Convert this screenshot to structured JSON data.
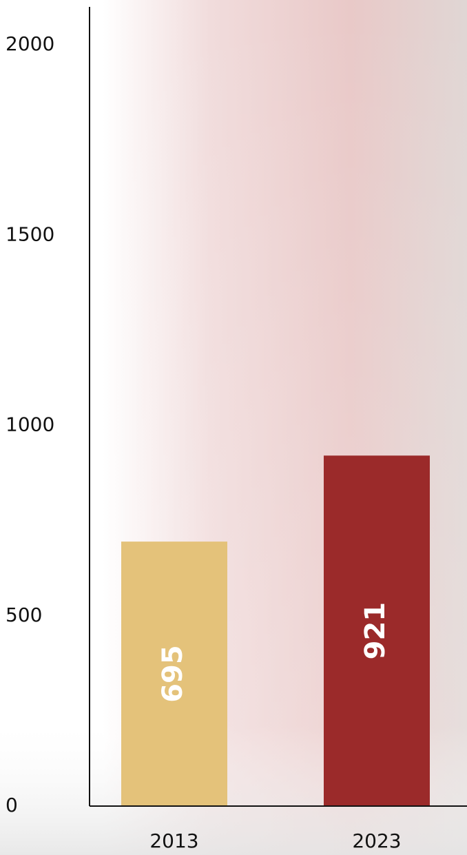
{
  "chart_data": {
    "type": "bar",
    "categories": [
      "2013",
      "2023"
    ],
    "values": [
      695,
      921
    ],
    "colors": [
      "#e4c27a",
      "#9b2a2a"
    ],
    "ylim": [
      0,
      2100
    ],
    "yticks": [
      0,
      500,
      1000,
      1500,
      2000
    ]
  }
}
